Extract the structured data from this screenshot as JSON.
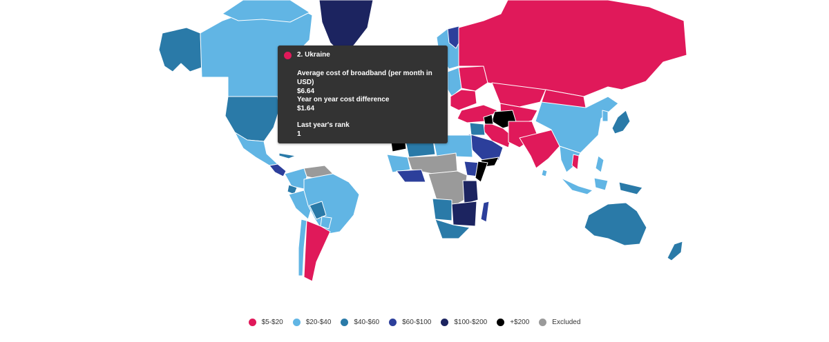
{
  "colors": {
    "c1": "#e0195a",
    "c2": "#61b5e4",
    "c3": "#2a7aa8",
    "c4": "#2c3f9b",
    "c5": "#1c2460",
    "c6": "#000000",
    "excluded": "#9a9a9a"
  },
  "tooltip": {
    "title": "2. Ukraine",
    "color": "#e0195a",
    "rows": [
      {
        "label": "Average cost of broadband (per month in USD)",
        "value": "$6.64"
      },
      {
        "label": "Year on year cost difference",
        "value": "$1.64"
      },
      {
        "label": "Last year's rank",
        "value": "1"
      }
    ]
  },
  "legend": [
    {
      "label": "$5-$20",
      "color": "#e0195a"
    },
    {
      "label": "$20-$40",
      "color": "#61b5e4"
    },
    {
      "label": "$40-$60",
      "color": "#2a7aa8"
    },
    {
      "label": "$60-$100",
      "color": "#2c3f9b"
    },
    {
      "label": "$100-$200",
      "color": "#1c2460"
    },
    {
      "label": "+$200",
      "color": "#000000"
    },
    {
      "label": "Excluded",
      "color": "#9a9a9a"
    }
  ]
}
